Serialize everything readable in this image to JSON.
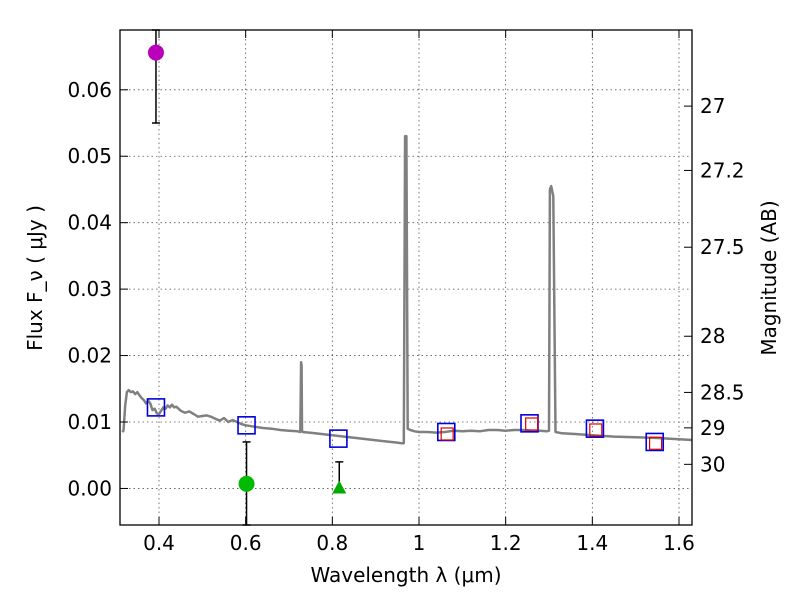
{
  "chart_data": {
    "type": "scatter",
    "xlabel": "Wavelength  λ (μm)",
    "ylabel": "Flux  F_ν  ( μJy )",
    "y2label": "Magnitude (AB)",
    "xlim": [
      0.31,
      1.63
    ],
    "ylim": [
      -0.0055,
      0.069
    ],
    "grid": true,
    "x_ticks": [
      0.4,
      0.6,
      0.8,
      1.0,
      1.2,
      1.4,
      1.6
    ],
    "x_tick_labels": [
      "0.4",
      "0.6",
      "0.8",
      "1",
      "1.2",
      "1.4",
      "1.6"
    ],
    "y_ticks": [
      0.0,
      0.01,
      0.02,
      0.03,
      0.04,
      0.05,
      0.06
    ],
    "y_tick_labels": [
      "0.00",
      "0.01",
      "0.02",
      "0.03",
      "0.04",
      "0.05",
      "0.06"
    ],
    "y2_ticks": [
      27,
      27.2,
      27.5,
      28,
      28.5,
      29,
      30
    ],
    "y2_tick_labels": [
      "27",
      "27.2",
      "27.5",
      "28",
      "28.5",
      "29",
      "30"
    ],
    "colors": {
      "model": "#808080",
      "photometry_box": "#0000dd",
      "model_box": "#dd0000",
      "magenta_point": "#bb00bb",
      "green_point": "#00bb00",
      "errorbar": "#000000"
    },
    "model_spectrum": {
      "name": "model SED",
      "x": [
        0.315,
        0.318,
        0.322,
        0.326,
        0.33,
        0.335,
        0.34,
        0.345,
        0.35,
        0.355,
        0.36,
        0.365,
        0.37,
        0.375,
        0.38,
        0.385,
        0.39,
        0.395,
        0.4,
        0.405,
        0.41,
        0.415,
        0.42,
        0.425,
        0.43,
        0.435,
        0.44,
        0.445,
        0.45,
        0.46,
        0.47,
        0.48,
        0.49,
        0.5,
        0.51,
        0.52,
        0.53,
        0.54,
        0.55,
        0.56,
        0.57,
        0.58,
        0.59,
        0.6,
        0.62,
        0.64,
        0.66,
        0.68,
        0.7,
        0.72,
        0.726,
        0.728,
        0.729,
        0.73,
        0.732,
        0.76,
        0.8,
        0.84,
        0.88,
        0.92,
        0.95,
        0.96,
        0.965,
        0.968,
        0.971,
        0.974,
        0.98,
        0.99,
        1.0,
        1.02,
        1.04,
        1.06,
        1.08,
        1.1,
        1.12,
        1.14,
        1.16,
        1.18,
        1.2,
        1.22,
        1.24,
        1.26,
        1.28,
        1.295,
        1.3,
        1.302,
        1.305,
        1.31,
        1.315,
        1.33,
        1.36,
        1.4,
        1.45,
        1.5,
        1.55,
        1.6,
        1.63
      ],
      "y": [
        0.0085,
        0.0087,
        0.0125,
        0.0145,
        0.0148,
        0.0145,
        0.0146,
        0.0142,
        0.0145,
        0.014,
        0.0136,
        0.0133,
        0.0128,
        0.0132,
        0.0128,
        0.0118,
        0.012,
        0.0113,
        0.0112,
        0.0117,
        0.0122,
        0.012,
        0.0125,
        0.0122,
        0.0126,
        0.0122,
        0.0123,
        0.012,
        0.0117,
        0.0114,
        0.0116,
        0.0112,
        0.0108,
        0.0109,
        0.011,
        0.0108,
        0.0105,
        0.0102,
        0.0106,
        0.01,
        0.0103,
        0.01,
        0.0097,
        0.0095,
        0.0093,
        0.0091,
        0.009,
        0.0088,
        0.0087,
        0.0086,
        0.0085,
        0.019,
        0.0185,
        0.0087,
        0.0085,
        0.0083,
        0.008,
        0.0077,
        0.0074,
        0.0071,
        0.0069,
        0.0068,
        0.0068,
        0.053,
        0.053,
        0.009,
        0.0088,
        0.0086,
        0.0085,
        0.0085,
        0.0084,
        0.0085,
        0.0087,
        0.0086,
        0.0087,
        0.0086,
        0.0088,
        0.0088,
        0.0087,
        0.0088,
        0.0088,
        0.0087,
        0.0087,
        0.0086,
        0.0087,
        0.045,
        0.0455,
        0.044,
        0.0085,
        0.0083,
        0.0082,
        0.008,
        0.0078,
        0.0077,
        0.0076,
        0.0074,
        0.0073
      ]
    },
    "photometry_boxes": [
      {
        "x": 0.393,
        "y": 0.0122
      },
      {
        "x": 0.602,
        "y": 0.0095
      },
      {
        "x": 0.814,
        "y": 0.0075
      },
      {
        "x": 1.063,
        "y": 0.0085
      },
      {
        "x": 1.255,
        "y": 0.0098
      },
      {
        "x": 1.406,
        "y": 0.009
      },
      {
        "x": 1.544,
        "y": 0.007
      }
    ],
    "model_boxes": [
      {
        "x": 1.065,
        "y": 0.0082
      },
      {
        "x": 1.26,
        "y": 0.0097
      },
      {
        "x": 1.408,
        "y": 0.0088
      },
      {
        "x": 1.546,
        "y": 0.0068
      }
    ],
    "points": [
      {
        "name": "magenta-circle",
        "marker": "circle",
        "x": 0.393,
        "y": 0.0656,
        "err_low": 0.0106,
        "err_high": 0.0034,
        "color": "#bb00bb"
      },
      {
        "name": "green-circle",
        "marker": "circle",
        "x": 0.602,
        "y": 0.0007,
        "err_low": 0.0062,
        "err_high": 0.0063,
        "color": "#00bb00"
      },
      {
        "name": "green-triangle",
        "marker": "triangle",
        "x": 0.816,
        "y": 0.0,
        "err_low": 0.0,
        "err_high": 0.004,
        "color": "#00aa00"
      }
    ]
  }
}
